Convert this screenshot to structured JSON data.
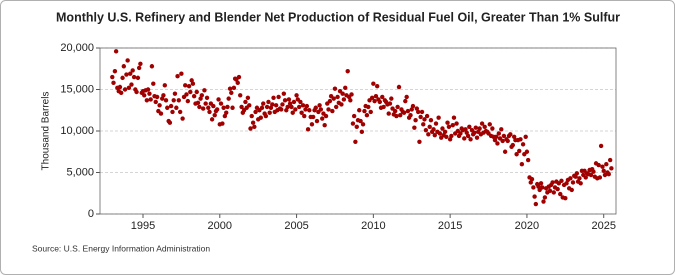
{
  "chart_data": {
    "type": "scatter",
    "title": "Monthly U.S. Refinery and Blender Net Production of Residual Fuel Oil, Greater Than 1% Sulfur",
    "y_label": "Thousand Barrels",
    "source": "Source: U.S. Energy Information Administration",
    "color": "#a00000",
    "grid": true,
    "xlim": [
      1992.2,
      2025.8
    ],
    "ylim": [
      0,
      20000
    ],
    "xticks": [
      1995,
      2000,
      2005,
      2010,
      2015,
      2020,
      2025
    ],
    "yticks": [
      {
        "value": 0,
        "label": "0"
      },
      {
        "value": 5000,
        "label": "5,000"
      },
      {
        "value": 10000,
        "label": "10,000"
      },
      {
        "value": 15000,
        "label": "15,000"
      },
      {
        "value": 20000,
        "label": "20,000"
      }
    ],
    "x": [
      1993.0,
      1993.08,
      1993.17,
      1993.25,
      1993.33,
      1993.42,
      1993.5,
      1993.58,
      1993.67,
      1993.75,
      1993.83,
      1993.92,
      1994.0,
      1994.08,
      1994.17,
      1994.25,
      1994.33,
      1994.42,
      1994.5,
      1994.58,
      1994.67,
      1994.75,
      1994.83,
      1994.92,
      1995.0,
      1995.08,
      1995.17,
      1995.25,
      1995.33,
      1995.42,
      1995.5,
      1995.58,
      1995.67,
      1995.75,
      1995.83,
      1995.92,
      1996.0,
      1996.08,
      1996.17,
      1996.25,
      1996.33,
      1996.42,
      1996.5,
      1996.58,
      1996.67,
      1996.75,
      1996.83,
      1996.92,
      1997.0,
      1997.08,
      1997.17,
      1997.25,
      1997.33,
      1997.42,
      1997.5,
      1997.58,
      1997.67,
      1997.75,
      1997.83,
      1997.92,
      1998.0,
      1998.08,
      1998.17,
      1998.25,
      1998.33,
      1998.42,
      1998.5,
      1998.58,
      1998.67,
      1998.75,
      1998.83,
      1998.92,
      1999.0,
      1999.08,
      1999.17,
      1999.25,
      1999.33,
      1999.42,
      1999.5,
      1999.58,
      1999.67,
      1999.75,
      1999.83,
      1999.92,
      2000.0,
      2000.08,
      2000.17,
      2000.25,
      2000.33,
      2000.42,
      2000.5,
      2000.58,
      2000.67,
      2000.75,
      2000.83,
      2000.92,
      2001.0,
      2001.08,
      2001.17,
      2001.25,
      2001.33,
      2001.42,
      2001.5,
      2001.58,
      2001.67,
      2001.75,
      2001.83,
      2001.92,
      2002.0,
      2002.08,
      2002.17,
      2002.25,
      2002.33,
      2002.42,
      2002.5,
      2002.58,
      2002.67,
      2002.75,
      2002.83,
      2002.92,
      2003.0,
      2003.08,
      2003.17,
      2003.25,
      2003.33,
      2003.42,
      2003.5,
      2003.58,
      2003.67,
      2003.75,
      2003.83,
      2003.92,
      2004.0,
      2004.08,
      2004.17,
      2004.25,
      2004.33,
      2004.42,
      2004.5,
      2004.58,
      2004.67,
      2004.75,
      2004.83,
      2004.92,
      2005.0,
      2005.08,
      2005.17,
      2005.25,
      2005.33,
      2005.42,
      2005.5,
      2005.58,
      2005.67,
      2005.75,
      2005.83,
      2005.92,
      2006.0,
      2006.08,
      2006.17,
      2006.25,
      2006.33,
      2006.42,
      2006.5,
      2006.58,
      2006.67,
      2006.75,
      2006.83,
      2006.92,
      2007.0,
      2007.08,
      2007.17,
      2007.25,
      2007.33,
      2007.42,
      2007.5,
      2007.58,
      2007.67,
      2007.75,
      2007.83,
      2007.92,
      2008.0,
      2008.08,
      2008.17,
      2008.25,
      2008.33,
      2008.42,
      2008.5,
      2008.58,
      2008.67,
      2008.75,
      2008.83,
      2008.92,
      2009.0,
      2009.08,
      2009.17,
      2009.25,
      2009.33,
      2009.42,
      2009.5,
      2009.58,
      2009.67,
      2009.75,
      2009.83,
      2009.92,
      2010.0,
      2010.08,
      2010.17,
      2010.25,
      2010.33,
      2010.42,
      2010.5,
      2010.58,
      2010.67,
      2010.75,
      2010.83,
      2010.92,
      2011.0,
      2011.08,
      2011.17,
      2011.25,
      2011.33,
      2011.42,
      2011.5,
      2011.58,
      2011.67,
      2011.75,
      2011.83,
      2011.92,
      2012.0,
      2012.08,
      2012.17,
      2012.25,
      2012.33,
      2012.42,
      2012.5,
      2012.58,
      2012.67,
      2012.75,
      2012.83,
      2012.92,
      2013.0,
      2013.08,
      2013.17,
      2013.25,
      2013.33,
      2013.42,
      2013.5,
      2013.58,
      2013.67,
      2013.75,
      2013.83,
      2013.92,
      2014.0,
      2014.08,
      2014.17,
      2014.25,
      2014.33,
      2014.42,
      2014.5,
      2014.58,
      2014.67,
      2014.75,
      2014.83,
      2014.92,
      2015.0,
      2015.08,
      2015.17,
      2015.25,
      2015.33,
      2015.42,
      2015.5,
      2015.58,
      2015.67,
      2015.75,
      2015.83,
      2015.92,
      2016.0,
      2016.08,
      2016.17,
      2016.25,
      2016.33,
      2016.42,
      2016.5,
      2016.58,
      2016.67,
      2016.75,
      2016.83,
      2016.92,
      2017.0,
      2017.08,
      2017.17,
      2017.25,
      2017.33,
      2017.42,
      2017.5,
      2017.58,
      2017.67,
      2017.75,
      2017.83,
      2017.92,
      2018.0,
      2018.08,
      2018.17,
      2018.25,
      2018.33,
      2018.42,
      2018.5,
      2018.58,
      2018.67,
      2018.75,
      2018.83,
      2018.92,
      2019.0,
      2019.08,
      2019.17,
      2019.25,
      2019.33,
      2019.42,
      2019.5,
      2019.58,
      2019.67,
      2019.75,
      2019.83,
      2019.92,
      2020.0,
      2020.08,
      2020.17,
      2020.25,
      2020.33,
      2020.42,
      2020.5,
      2020.58,
      2020.67,
      2020.75,
      2020.83,
      2020.92,
      2021.0,
      2021.08,
      2021.17,
      2021.25,
      2021.33,
      2021.42,
      2021.5,
      2021.58,
      2021.67,
      2021.75,
      2021.83,
      2021.92,
      2022.0,
      2022.08,
      2022.17,
      2022.25,
      2022.33,
      2022.42,
      2022.5,
      2022.58,
      2022.67,
      2022.75,
      2022.83,
      2022.92,
      2023.0,
      2023.08,
      2023.17,
      2023.25,
      2023.33,
      2023.42,
      2023.5,
      2023.58,
      2023.67,
      2023.75,
      2023.83,
      2023.92,
      2024.0,
      2024.08,
      2024.17,
      2024.25,
      2024.33,
      2024.42,
      2024.5,
      2024.58,
      2024.67,
      2024.75,
      2024.83,
      2024.92,
      2025.0,
      2025.08,
      2025.17,
      2025.25,
      2025.33,
      2025.42,
      2025.5
    ],
    "values": [
      16500,
      15800,
      17200,
      19600,
      15200,
      14800,
      15300,
      14600,
      16400,
      17800,
      15000,
      16800,
      18500,
      15200,
      16900,
      15600,
      17300,
      16500,
      15000,
      14700,
      16400,
      17600,
      18100,
      14600,
      14800,
      14300,
      14900,
      13700,
      15000,
      14500,
      13800,
      17800,
      15700,
      14200,
      13500,
      14100,
      12400,
      13100,
      12100,
      13900,
      14300,
      15500,
      13700,
      12800,
      11200,
      11000,
      13000,
      12300,
      13700,
      14500,
      12800,
      16600,
      13700,
      12300,
      16900,
      11500,
      14100,
      15500,
      14400,
      13600,
      15400,
      14700,
      16100,
      15700,
      14200,
      13300,
      14700,
      13400,
      12900,
      13900,
      14300,
      12700,
      14900,
      13300,
      14000,
      12800,
      12300,
      13300,
      11400,
      13000,
      11900,
      12400,
      12600,
      13800,
      10800,
      13300,
      10900,
      12800,
      11800,
      12200,
      12900,
      13900,
      15100,
      14600,
      12800,
      15200,
      16300,
      16200,
      15800,
      16500,
      14300,
      12900,
      12200,
      12500,
      13500,
      12800,
      14000,
      13100,
      10300,
      11800,
      11000,
      10500,
      12300,
      12800,
      11400,
      12500,
      11600,
      12800,
      13300,
      12100,
      11800,
      12900,
      13500,
      12200,
      12800,
      13200,
      14000,
      12300,
      13100,
      12500,
      14100,
      12700,
      12600,
      13200,
      14500,
      13700,
      12500,
      12900,
      13800,
      13300,
      12900,
      12200,
      13500,
      12600,
      14300,
      13800,
      12900,
      13500,
      12200,
      13100,
      11800,
      12600,
      13000,
      10200,
      12500,
      11700,
      10800,
      11700,
      12500,
      12800,
      11200,
      12300,
      13100,
      12600,
      11500,
      12100,
      10700,
      11800,
      13300,
      12600,
      13600,
      14200,
      12400,
      13900,
      15100,
      12900,
      14100,
      13400,
      14800,
      13200,
      14500,
      13800,
      15200,
      14300,
      17200,
      14100,
      13700,
      14400,
      10900,
      11800,
      8700,
      10500,
      11300,
      12500,
      11200,
      9900,
      10800,
      12400,
      13000,
      11900,
      12900,
      13700,
      12300,
      14000,
      15700,
      13600,
      14200,
      15400,
      13800,
      13500,
      12800,
      14100,
      12900,
      13700,
      13500,
      13200,
      12100,
      13300,
      13900,
      12700,
      12000,
      12400,
      11800,
      12900,
      15300,
      11900,
      12600,
      12300,
      12200,
      13600,
      14100,
      12400,
      11600,
      11900,
      12600,
      13000,
      10400,
      11300,
      12700,
      12300,
      8700,
      11700,
      12300,
      10800,
      11400,
      10100,
      11800,
      9600,
      10500,
      11300,
      9900,
      10200,
      9500,
      10900,
      9900,
      11600,
      9700,
      9200,
      10300,
      9500,
      9900,
      9300,
      11000,
      10500,
      9000,
      9400,
      10700,
      11600,
      9700,
      10900,
      10000,
      9400,
      9700,
      10300,
      10100,
      9100,
      10200,
      9800,
      9400,
      10500,
      9000,
      10100,
      9600,
      9800,
      10400,
      9200,
      9900,
      10300,
      9600,
      10900,
      9800,
      10500,
      10000,
      9900,
      9700,
      10800,
      9400,
      10300,
      9300,
      8900,
      9300,
      8500,
      9700,
      9100,
      10200,
      8800,
      9400,
      7500,
      9000,
      8800,
      9400,
      9600,
      8100,
      8300,
      9300,
      8900,
      7200,
      8900,
      7600,
      9000,
      6000,
      8400,
      7200,
      9300,
      7500,
      6500,
      4400,
      3800,
      4200,
      3200,
      2100,
      1200,
      3600,
      3300,
      2900,
      3700,
      3200,
      1500,
      2000,
      3100,
      2600,
      3300,
      2800,
      3500,
      3800,
      2600,
      3200,
      3900,
      3000,
      3700,
      2400,
      4000,
      2000,
      3500,
      1900,
      3700,
      4100,
      3100,
      4300,
      2900,
      3800,
      4600,
      4500,
      4900,
      3900,
      4300,
      3700,
      5200,
      4700,
      5200,
      4400,
      4900,
      4800,
      5300,
      4700,
      5400,
      5100,
      4500,
      6100,
      4300,
      5900,
      4400,
      8200,
      5700,
      5200,
      4700,
      6000,
      5000,
      4800,
      6500,
      5500
    ]
  }
}
